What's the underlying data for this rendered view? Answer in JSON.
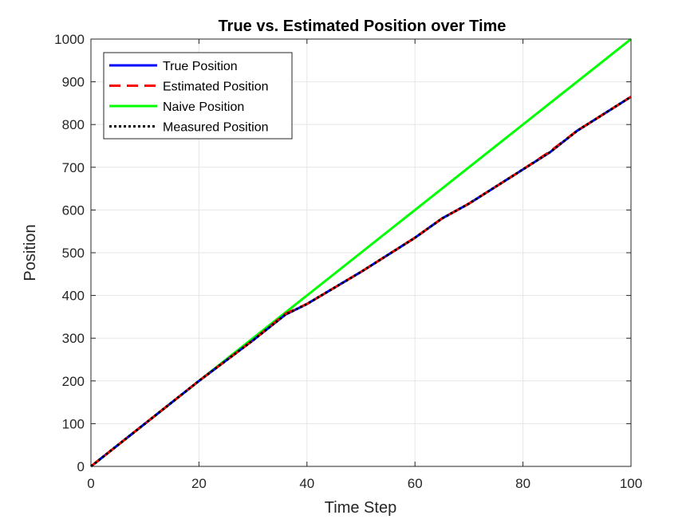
{
  "chart_data": {
    "type": "line",
    "title": "True vs. Estimated Position over Time",
    "xlabel": "Time Step",
    "ylabel": "Position",
    "xlim": [
      0,
      100
    ],
    "ylim": [
      0,
      1000
    ],
    "xticks": [
      0,
      20,
      40,
      60,
      80,
      100
    ],
    "yticks": [
      0,
      100,
      200,
      300,
      400,
      500,
      600,
      700,
      800,
      900,
      1000
    ],
    "grid": true,
    "legend_position": "top-left",
    "series": [
      {
        "name": "True Position",
        "color": "#0000ff",
        "style": "solid",
        "x": [
          0,
          10,
          20,
          30,
          36,
          40,
          50,
          60,
          65,
          70,
          80,
          85,
          90,
          100
        ],
        "y": [
          0,
          100,
          200,
          295,
          355,
          380,
          455,
          535,
          580,
          615,
          695,
          735,
          785,
          865
        ]
      },
      {
        "name": "Estimated Position",
        "color": "#ff0000",
        "style": "dashed",
        "x": [
          0,
          10,
          20,
          30,
          36,
          40,
          50,
          60,
          65,
          70,
          80,
          85,
          90,
          100
        ],
        "y": [
          0,
          100,
          200,
          295,
          357,
          380,
          455,
          535,
          580,
          615,
          695,
          737,
          785,
          865
        ]
      },
      {
        "name": "Naive Position",
        "color": "#00ff00",
        "style": "solid",
        "x": [
          0,
          100
        ],
        "y": [
          0,
          1000
        ]
      },
      {
        "name": "Measured Position",
        "color": "#000000",
        "style": "dotted",
        "x": [
          0,
          10,
          20,
          30,
          36,
          40,
          50,
          60,
          65,
          70,
          80,
          85,
          90,
          100
        ],
        "y": [
          0,
          100,
          200,
          295,
          355,
          380,
          455,
          535,
          580,
          615,
          695,
          735,
          785,
          865
        ]
      }
    ]
  }
}
